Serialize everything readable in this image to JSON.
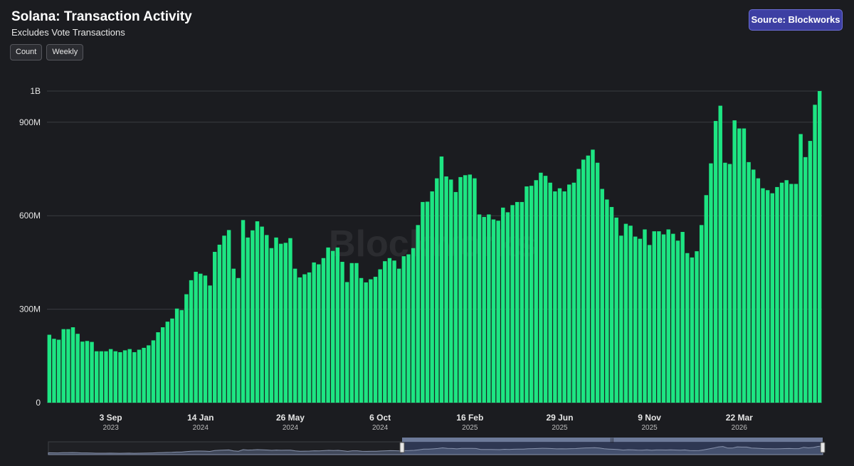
{
  "header": {
    "title": "Solana: Transaction Activity",
    "subtitle": "Excludes Vote Transactions",
    "source_button": "Source: Blockworks"
  },
  "controls": {
    "metric_button": "Count",
    "interval_button": "Weekly"
  },
  "watermark": "Blockworks",
  "colors": {
    "background": "#1b1c20",
    "bar": "#1de582",
    "source_button": "#3d3fa3",
    "navigator_fill": "#3a4a78"
  },
  "chart_data": {
    "type": "bar",
    "title": "Solana: Transaction Activity",
    "subtitle": "Excludes Vote Transactions",
    "ylim": [
      0,
      1000000000
    ],
    "yticks": [
      {
        "value": 0,
        "label": "0"
      },
      {
        "value": 300000000,
        "label": "300M"
      },
      {
        "value": 600000000,
        "label": "600M"
      },
      {
        "value": 900000000,
        "label": "900M"
      },
      {
        "value": 1000000000,
        "label": "1B"
      }
    ],
    "xticks": [
      {
        "index": 13,
        "label": "3 Sep",
        "year": "2023"
      },
      {
        "index": 32,
        "label": "14 Jan",
        "year": "2024"
      },
      {
        "index": 51,
        "label": "26 May",
        "year": "2024"
      },
      {
        "index": 70,
        "label": "6 Oct",
        "year": "2024"
      },
      {
        "index": 89,
        "label": "16 Feb",
        "year": "2025"
      },
      {
        "index": 108,
        "label": "29 Jun",
        "year": "2025"
      },
      {
        "index": 127,
        "label": "9 Nov",
        "year": "2025"
      },
      {
        "index": 146,
        "label": "22 Mar",
        "year": "2026"
      }
    ],
    "grid": true,
    "values": [
      218,
      205,
      202,
      236,
      236,
      242,
      221,
      196,
      198,
      195,
      165,
      165,
      165,
      172,
      165,
      162,
      168,
      172,
      162,
      170,
      176,
      184,
      200,
      226,
      242,
      260,
      270,
      302,
      297,
      348,
      393,
      420,
      414,
      408,
      376,
      484,
      507,
      536,
      554,
      430,
      400,
      586,
      530,
      553,
      582,
      565,
      538,
      496,
      530,
      510,
      513,
      528,
      430,
      402,
      412,
      418,
      450,
      444,
      464,
      498,
      487,
      498,
      452,
      387,
      448,
      448,
      400,
      386,
      396,
      404,
      428,
      454,
      464,
      456,
      430,
      470,
      476,
      496,
      570,
      644,
      645,
      678,
      720,
      790,
      726,
      716,
      676,
      724,
      730,
      732,
      720,
      604,
      596,
      604,
      588,
      584,
      626,
      611,
      634,
      644,
      644,
      694,
      696,
      714,
      738,
      728,
      706,
      678,
      688,
      678,
      700,
      706,
      750,
      780,
      793,
      812,
      770,
      686,
      652,
      628,
      594,
      536,
      574,
      568,
      533,
      526,
      556,
      506,
      550,
      550,
      540,
      556,
      542,
      520,
      548,
      480,
      466,
      486,
      570,
      666,
      768,
      904,
      953,
      770,
      766,
      906,
      880,
      880,
      772,
      748,
      720,
      688,
      682,
      672,
      692,
      706,
      714,
      702,
      702,
      862,
      788,
      840,
      956,
      1000
    ]
  }
}
